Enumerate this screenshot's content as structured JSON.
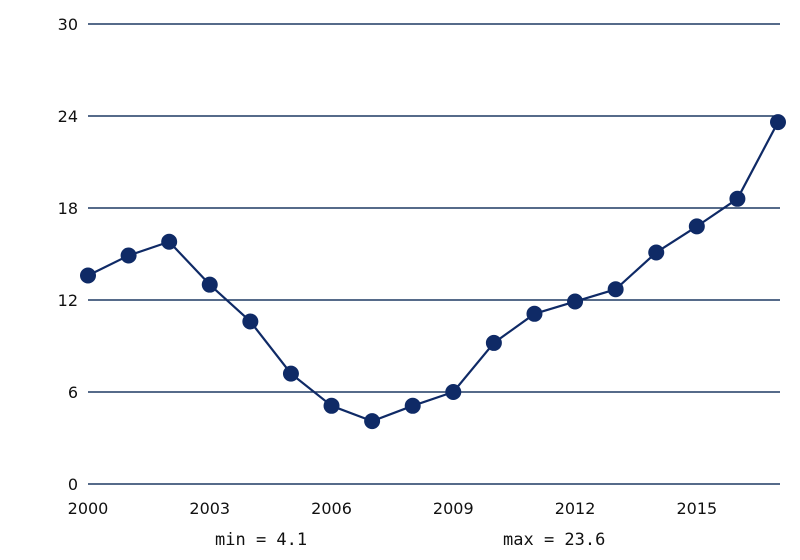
{
  "chart_data": {
    "type": "line",
    "x": [
      2000,
      2001,
      2002,
      2003,
      2004,
      2005,
      2006,
      2007,
      2008,
      2009,
      2010,
      2011,
      2012,
      2013,
      2014,
      2015,
      2016,
      2017
    ],
    "series": [
      {
        "values": [
          13.6,
          14.9,
          15.8,
          13.0,
          10.6,
          7.2,
          5.1,
          4.1,
          5.1,
          6.0,
          9.2,
          11.1,
          11.9,
          12.7,
          15.1,
          16.8,
          18.6,
          23.6
        ]
      }
    ],
    "xlim": [
      2000,
      2017
    ],
    "ylim": [
      0,
      30
    ],
    "x_ticks": [
      "2000",
      "2003",
      "2006",
      "2009",
      "2012",
      "2015"
    ],
    "y_ticks": [
      "0",
      "6",
      "12",
      "18",
      "24",
      "30"
    ],
    "grid": "horizontal",
    "annotations": {
      "min": "min = 4.1",
      "max": "max = 23.6"
    },
    "colors": {
      "series": "#0f2a66",
      "grid": "#1f3a64"
    }
  }
}
